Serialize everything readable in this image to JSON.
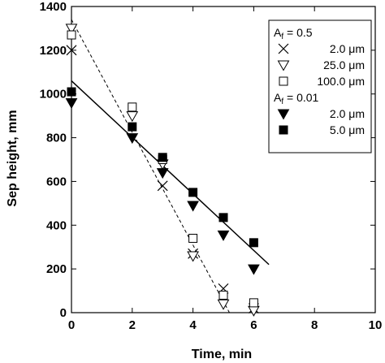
{
  "chart_data": {
    "type": "scatter",
    "xlabel": "Time, min",
    "ylabel": "Sep height, mm",
    "xlim": [
      0,
      10
    ],
    "ylim": [
      0,
      1400
    ],
    "xticks": [
      "0",
      "2",
      "4",
      "6",
      "8",
      "10"
    ],
    "yticks": [
      "0",
      "200",
      "400",
      "600",
      "800",
      "1000",
      "1200",
      "1400"
    ],
    "grid": false,
    "legend_position": "top-right",
    "legend_groups": [
      {
        "heading": "A",
        "subscript": "f",
        "value": " = 0.5"
      },
      {
        "heading": "A",
        "subscript": "f",
        "value": " = 0.01"
      }
    ],
    "series": [
      {
        "name": "2.0 μm",
        "group": 0,
        "marker": "x",
        "x": [
          0,
          3,
          4,
          5,
          6
        ],
        "y": [
          1200,
          580,
          270,
          110,
          20
        ]
      },
      {
        "name": "25.0 μm",
        "group": 0,
        "marker": "triangle-down-open",
        "x": [
          0,
          2,
          3,
          4,
          5,
          6
        ],
        "y": [
          1300,
          900,
          680,
          260,
          40,
          10
        ]
      },
      {
        "name": "100.0 μm",
        "group": 0,
        "marker": "square-open",
        "x": [
          0,
          2,
          3,
          4,
          5,
          6
        ],
        "y": [
          1270,
          940,
          700,
          340,
          80,
          45
        ]
      },
      {
        "name": "2.0 μm",
        "group": 1,
        "marker": "triangle-down-filled",
        "x": [
          0,
          2,
          3,
          4,
          5,
          6
        ],
        "y": [
          960,
          800,
          640,
          490,
          355,
          200
        ]
      },
      {
        "name": "5.0 μm",
        "group": 1,
        "marker": "square-filled",
        "x": [
          0,
          2,
          3,
          4,
          5,
          6
        ],
        "y": [
          1010,
          850,
          710,
          550,
          435,
          320
        ]
      }
    ],
    "fit_lines": [
      {
        "style": "dashed",
        "x": [
          0,
          5.2
        ],
        "y": [
          1340,
          0
        ]
      },
      {
        "style": "solid",
        "x": [
          0,
          6.5
        ],
        "y": [
          1060,
          220
        ]
      }
    ]
  }
}
